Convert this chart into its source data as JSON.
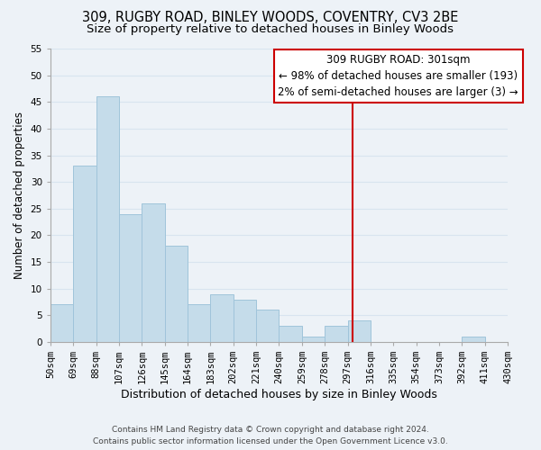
{
  "title": "309, RUGBY ROAD, BINLEY WOODS, COVENTRY, CV3 2BE",
  "subtitle": "Size of property relative to detached houses in Binley Woods",
  "xlabel": "Distribution of detached houses by size in Binley Woods",
  "ylabel": "Number of detached properties",
  "bar_color": "#c5dcea",
  "bar_edge_color": "#a0c4da",
  "bin_edges": [
    50,
    69,
    88,
    107,
    126,
    145,
    164,
    183,
    202,
    221,
    240,
    259,
    278,
    297,
    316,
    335,
    354,
    373,
    392,
    411,
    430
  ],
  "bin_labels": [
    "50sqm",
    "69sqm",
    "88sqm",
    "107sqm",
    "126sqm",
    "145sqm",
    "164sqm",
    "183sqm",
    "202sqm",
    "221sqm",
    "240sqm",
    "259sqm",
    "278sqm",
    "297sqm",
    "316sqm",
    "335sqm",
    "354sqm",
    "373sqm",
    "392sqm",
    "411sqm",
    "430sqm"
  ],
  "counts": [
    7,
    33,
    46,
    24,
    26,
    18,
    7,
    9,
    8,
    6,
    3,
    1,
    3,
    4,
    0,
    0,
    0,
    0,
    1,
    0
  ],
  "ylim": [
    0,
    55
  ],
  "yticks": [
    0,
    5,
    10,
    15,
    20,
    25,
    30,
    35,
    40,
    45,
    50,
    55
  ],
  "vline_x": 301,
  "vline_color": "#cc0000",
  "annotation_title": "309 RUGBY ROAD: 301sqm",
  "annotation_line1": "← 98% of detached houses are smaller (193)",
  "annotation_line2": "2% of semi-detached houses are larger (3) →",
  "annotation_box_facecolor": "#ffffff",
  "annotation_box_edgecolor": "#cc0000",
  "footer_line1": "Contains HM Land Registry data © Crown copyright and database right 2024.",
  "footer_line2": "Contains public sector information licensed under the Open Government Licence v3.0.",
  "background_color": "#edf2f7",
  "grid_color": "#d8e4ef",
  "title_fontsize": 10.5,
  "subtitle_fontsize": 9.5,
  "xlabel_fontsize": 9,
  "ylabel_fontsize": 8.5,
  "tick_fontsize": 7.5,
  "annotation_fontsize": 8.5,
  "footer_fontsize": 6.5
}
